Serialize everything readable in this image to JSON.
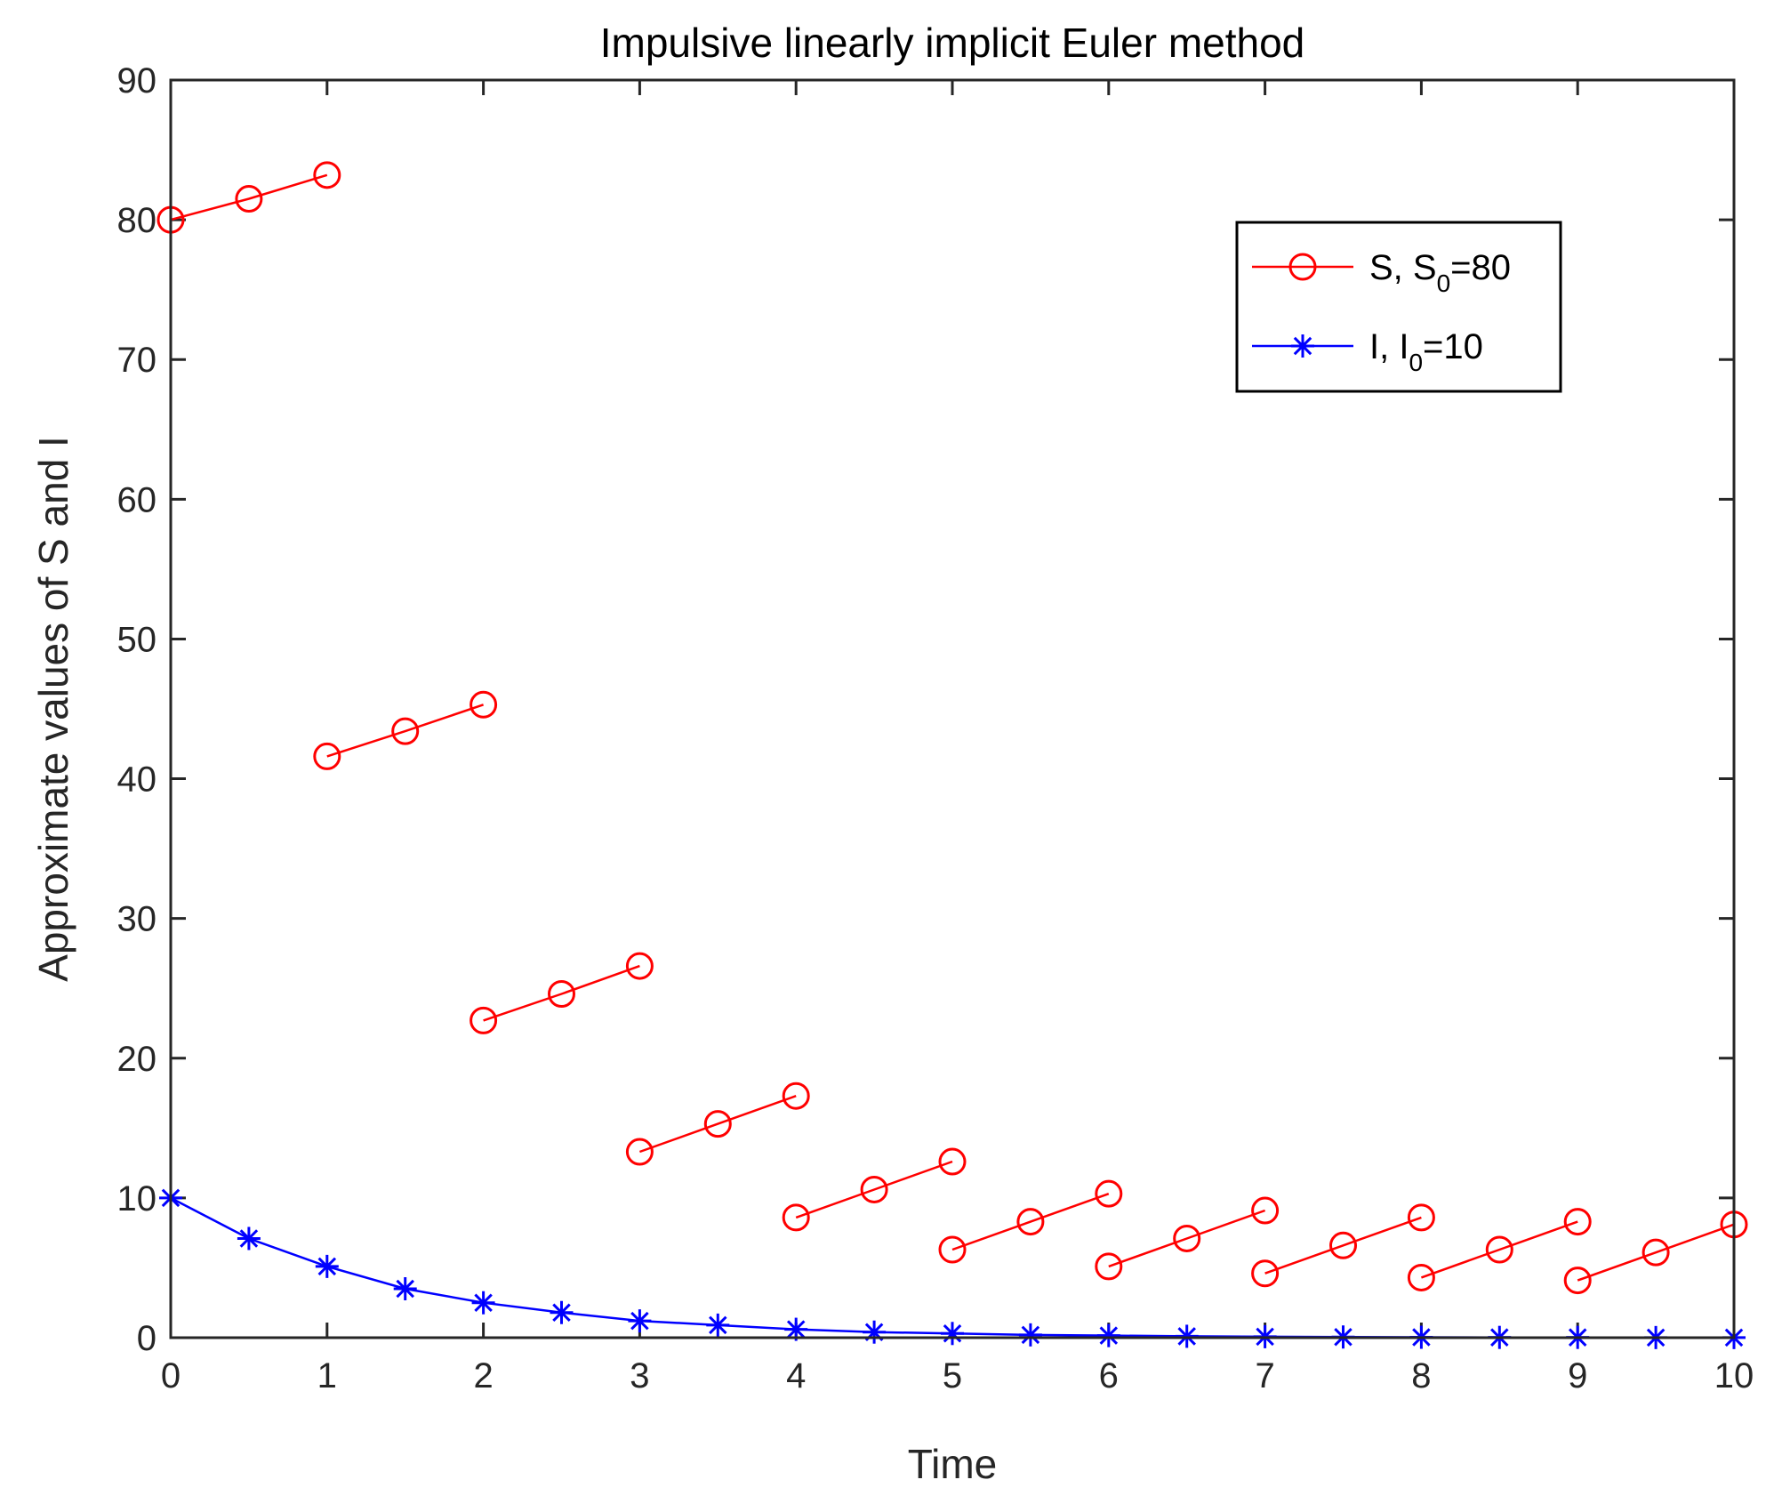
{
  "chart_data": {
    "type": "line",
    "title": "Impulsive linearly implicit Euler method",
    "xlabel": "Time",
    "ylabel": "Approximate values of S and I",
    "xlim": [
      0,
      10
    ],
    "ylim": [
      0,
      90
    ],
    "xticks": [
      0,
      1,
      2,
      3,
      4,
      5,
      6,
      7,
      8,
      9,
      10
    ],
    "yticks": [
      0,
      10,
      20,
      30,
      40,
      50,
      60,
      70,
      80,
      90
    ],
    "grid": false,
    "legend_position": "top-right",
    "series": [
      {
        "name": "S, S0=80",
        "legend_main": "S, S",
        "legend_sub": "0",
        "legend_tail": "=80",
        "color": "#ff0000",
        "marker": "circle",
        "segments": [
          {
            "x": [
              0,
              0.5,
              1
            ],
            "y": [
              80.0,
              81.5,
              83.2
            ]
          },
          {
            "x": [
              1,
              1.5,
              2
            ],
            "y": [
              41.6,
              43.4,
              45.3
            ]
          },
          {
            "x": [
              2,
              2.5,
              3
            ],
            "y": [
              22.7,
              24.6,
              26.6
            ]
          },
          {
            "x": [
              3,
              3.5,
              4
            ],
            "y": [
              13.3,
              15.3,
              17.3
            ]
          },
          {
            "x": [
              4,
              4.5,
              5
            ],
            "y": [
              8.6,
              10.6,
              12.6
            ]
          },
          {
            "x": [
              5,
              5.5,
              6
            ],
            "y": [
              6.3,
              8.3,
              10.3
            ]
          },
          {
            "x": [
              6,
              6.5,
              7
            ],
            "y": [
              5.1,
              7.1,
              9.1
            ]
          },
          {
            "x": [
              7,
              7.5,
              8
            ],
            "y": [
              4.6,
              6.6,
              8.6
            ]
          },
          {
            "x": [
              8,
              8.5,
              9
            ],
            "y": [
              4.3,
              6.3,
              8.3
            ]
          },
          {
            "x": [
              9,
              9.5,
              10
            ],
            "y": [
              4.1,
              6.1,
              8.1
            ]
          }
        ]
      },
      {
        "name": "I, I0=10",
        "legend_main": "I, I",
        "legend_sub": "0",
        "legend_tail": "=10",
        "color": "#0000ff",
        "marker": "asterisk",
        "segments": [
          {
            "x": [
              0,
              0.5,
              1,
              1.5,
              2,
              2.5,
              3,
              3.5,
              4,
              4.5,
              5,
              5.5,
              6,
              6.5,
              7,
              7.5,
              8,
              8.5,
              9,
              9.5,
              10
            ],
            "y": [
              10.0,
              7.1,
              5.1,
              3.5,
              2.5,
              1.8,
              1.2,
              0.9,
              0.6,
              0.4,
              0.3,
              0.2,
              0.15,
              0.1,
              0.07,
              0.05,
              0.03,
              0.02,
              0.02,
              0.01,
              0.01
            ]
          }
        ]
      }
    ]
  }
}
